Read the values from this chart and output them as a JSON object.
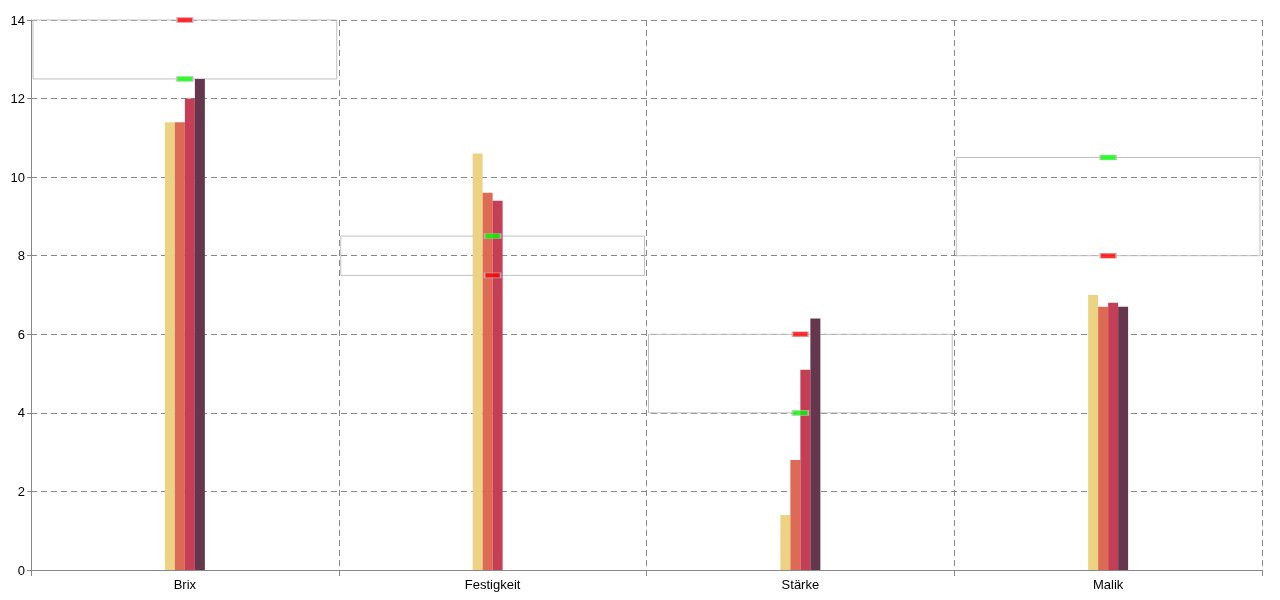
{
  "chart_data": {
    "type": "bar",
    "categories": [
      "Brix",
      "Festigkeit",
      "Stärke",
      "Malik"
    ],
    "series": [
      {
        "color": "#ecd384",
        "values": [
          11.4,
          10.6,
          1.4,
          7.0
        ]
      },
      {
        "color": "#dc6a55",
        "values": [
          11.4,
          9.6,
          2.8,
          6.7
        ]
      },
      {
        "color": "#c43f56",
        "values": [
          12.0,
          9.4,
          5.1,
          6.8
        ]
      },
      {
        "color": "#64374c",
        "values": [
          12.5,
          0,
          6.4,
          6.7
        ]
      },
      {
        "type": "scatter",
        "marker": "square",
        "color": "#00ff00",
        "x": [
          "Brix",
          "Festigkeit",
          "Stärke",
          "Malik"
        ],
        "values": [
          12.5,
          8.5,
          4,
          10.5
        ]
      },
      {
        "type": "scatter",
        "marker": "square",
        "color": "#ff0000",
        "x": [
          "Brix",
          "Festigkeit",
          "Stärke",
          "Malik"
        ],
        "values": [
          14,
          7.5,
          6,
          8
        ]
      }
    ],
    "ylim": [
      0,
      14
    ],
    "yticks": [
      0,
      2,
      4,
      6,
      8,
      10,
      12,
      14
    ],
    "grid": true
  }
}
